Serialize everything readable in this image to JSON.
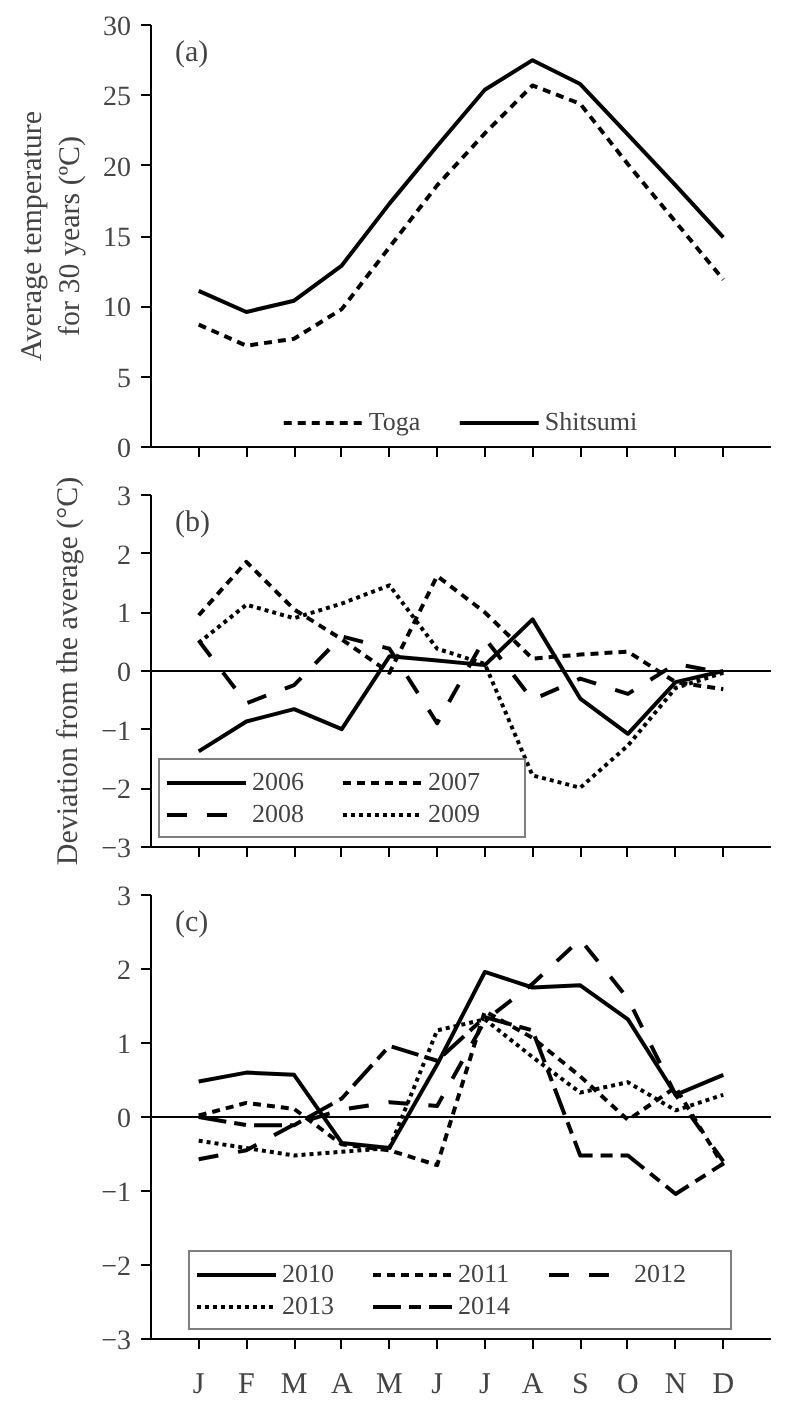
{
  "chart_data": [
    {
      "type": "line",
      "ylabel": "Average temperature\nfor 30 years (ºC)",
      "annotations": [
        "(a)"
      ],
      "categories": [
        null,
        null,
        null,
        null,
        null,
        null,
        null,
        null,
        null,
        null,
        null,
        null
      ],
      "ylim": [
        0,
        30
      ],
      "yticks": [
        0,
        5,
        10,
        15,
        20,
        25,
        30
      ],
      "legend": "bottom",
      "grid": false,
      "series": [
        {
          "name": "Toga",
          "color": "#000000",
          "line_style": "dashed",
          "values": [
            8.7,
            7.2,
            7.7,
            9.8,
            14.2,
            18.6,
            22.3,
            25.7,
            24.4,
            20.1,
            16.0,
            11.9
          ]
        },
        {
          "name": "Shitsumi",
          "color": "#000000",
          "line_style": "solid",
          "values": [
            11.1,
            9.6,
            10.4,
            12.9,
            17.3,
            21.4,
            25.4,
            27.5,
            25.8,
            22.2,
            18.6,
            14.9
          ]
        }
      ]
    },
    {
      "type": "line",
      "ylabel": "Deviation from the average (°C)",
      "annotations": [
        "(b)"
      ],
      "categories": [
        null,
        null,
        null,
        null,
        null,
        null,
        null,
        null,
        null,
        null,
        null,
        null
      ],
      "ylim": [
        -3,
        3
      ],
      "yticks": [
        -3,
        -2,
        -1,
        0,
        1,
        2,
        3
      ],
      "legend": "bottom left",
      "grid": false,
      "ref_lines": [
        {
          "axis": "y",
          "value": 0,
          "color": "#000000"
        }
      ],
      "series": [
        {
          "name": "2006",
          "color": "#000000",
          "line_style": "solid",
          "values": [
            -1.37,
            -0.86,
            -0.65,
            -0.99,
            0.25,
            0.18,
            0.1,
            0.88,
            -0.47,
            -1.07,
            -0.19,
            0.0
          ]
        },
        {
          "name": "2007",
          "color": "#000000",
          "line_style": "dashed",
          "values": [
            0.95,
            1.86,
            1.05,
            0.54,
            -0.03,
            1.62,
            1.0,
            0.21,
            0.28,
            0.33,
            -0.19,
            -0.31
          ]
        },
        {
          "name": "2008",
          "color": "#000000",
          "line_style": "longdash",
          "values": [
            0.52,
            -0.55,
            -0.24,
            0.59,
            0.38,
            -0.89,
            0.56,
            -0.49,
            -0.13,
            -0.39,
            0.12,
            -0.03
          ]
        },
        {
          "name": "2009",
          "color": "#000000",
          "line_style": "dotted",
          "values": [
            0.48,
            1.13,
            0.9,
            1.15,
            1.46,
            0.38,
            0.12,
            -1.78,
            -1.99,
            -1.27,
            -0.29,
            -0.03
          ]
        }
      ]
    },
    {
      "type": "line",
      "annotations": [
        "(c)"
      ],
      "categories": [
        "J",
        "F",
        "M",
        "A",
        "M",
        "J",
        "J",
        "A",
        "S",
        "O",
        "N",
        "D"
      ],
      "ylim": [
        -3,
        3
      ],
      "yticks": [
        -3,
        -2,
        -1,
        0,
        1,
        2,
        3
      ],
      "legend": "bottom",
      "grid": false,
      "ref_lines": [
        {
          "axis": "y",
          "value": 0,
          "color": "#000000"
        }
      ],
      "series": [
        {
          "name": "2010",
          "color": "#000000",
          "line_style": "solid",
          "values": [
            0.48,
            0.6,
            0.57,
            -0.35,
            -0.42,
            0.71,
            1.96,
            1.75,
            1.78,
            1.32,
            0.3,
            0.57
          ]
        },
        {
          "name": "2011",
          "color": "#000000",
          "line_style": "dashed",
          "values": [
            0.02,
            0.19,
            0.11,
            -0.37,
            -0.45,
            -0.65,
            1.43,
            1.07,
            0.55,
            -0.04,
            0.4,
            -0.66
          ]
        },
        {
          "name": "2012",
          "color": "#000000",
          "line_style": "longdash",
          "values": [
            -0.57,
            -0.45,
            -0.1,
            0.1,
            0.2,
            0.15,
            1.3,
            1.8,
            2.4,
            1.6,
            0.3,
            -0.6
          ]
        },
        {
          "name": "2013",
          "color": "#000000",
          "line_style": "dotted",
          "values": [
            -0.32,
            -0.42,
            -0.52,
            -0.47,
            -0.42,
            1.17,
            1.32,
            0.81,
            0.33,
            0.47,
            0.09,
            0.3
          ]
        },
        {
          "name": "2014",
          "color": "#000000",
          "line_style": "dashdot",
          "values": [
            0.0,
            -0.11,
            -0.11,
            0.25,
            0.96,
            0.76,
            1.35,
            1.17,
            -0.52,
            -0.52,
            -1.04,
            -0.63
          ]
        }
      ]
    }
  ]
}
